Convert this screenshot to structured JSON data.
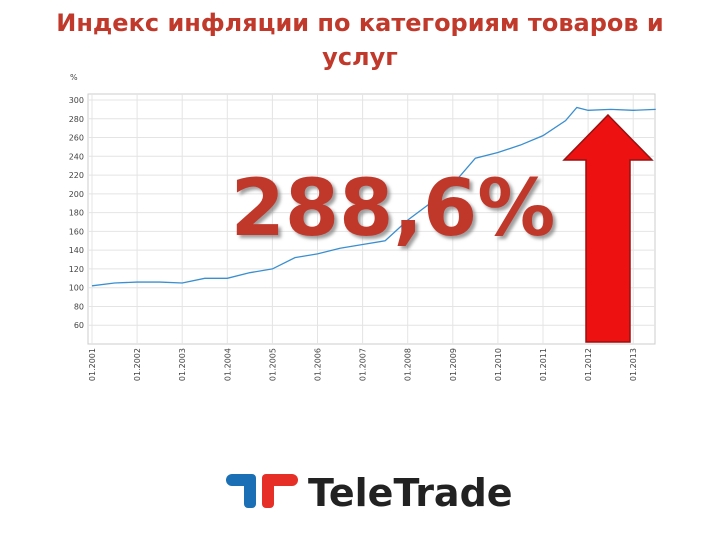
{
  "chart_data": {
    "type": "line",
    "title": "Индекс инфляции по категориям товаров и услуг",
    "y_label": "%",
    "annotation": "288,6%",
    "x": [
      "01.2001",
      "07.2001",
      "01.2002",
      "07.2002",
      "01.2003",
      "07.2003",
      "01.2004",
      "07.2004",
      "01.2005",
      "07.2005",
      "01.2006",
      "07.2006",
      "01.2007",
      "07.2007",
      "01.2008",
      "07.2008",
      "01.2009",
      "07.2009",
      "01.2010",
      "07.2010",
      "01.2011",
      "07.2011",
      "10.2011",
      "01.2012",
      "07.2012",
      "01.2013",
      "07.2013"
    ],
    "series": [
      {
        "name": "Индекс",
        "color": "#3a8fd0",
        "values": [
          102,
          105,
          106,
          106,
          105,
          110,
          110,
          116,
          120,
          132,
          136,
          142,
          146,
          150,
          172,
          190,
          210,
          238,
          244,
          252,
          262,
          278,
          292,
          289,
          290,
          289,
          290
        ]
      }
    ],
    "xticks": [
      "01.2001",
      "01.2002",
      "01.2003",
      "01.2004",
      "01.2005",
      "01.2006",
      "01.2007",
      "01.2008",
      "01.2009",
      "01.2010",
      "01.2011",
      "01.2012",
      "01.2013"
    ],
    "ylim": [
      40,
      300
    ],
    "yticks": [
      60,
      80,
      100,
      120,
      140,
      160,
      180,
      200,
      220,
      240,
      260,
      280,
      300
    ],
    "grid": true
  },
  "logo": {
    "text": "TeleTrade"
  }
}
